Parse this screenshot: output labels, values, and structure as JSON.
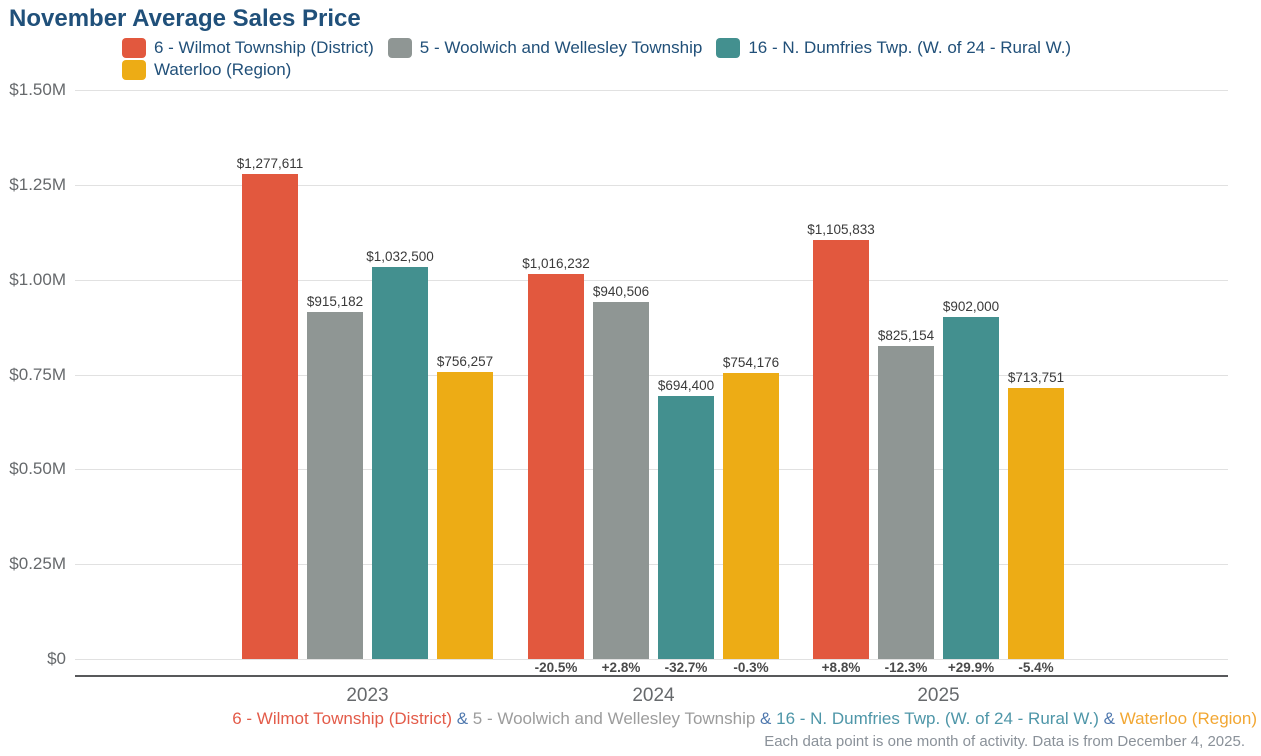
{
  "title": "November Average Sales Price",
  "chart_data": {
    "type": "bar",
    "title": "November Average Sales Price",
    "categories": [
      "2023",
      "2024",
      "2025"
    ],
    "series": [
      {
        "name": "6 - Wilmot Township (District)",
        "color": "#E2583E",
        "footer_color": "#E35B49",
        "values": [
          1277611,
          1016232,
          1105833
        ],
        "labels": [
          "$1,277,611",
          "$1,016,232",
          "$1,105,833"
        ],
        "pct_change": [
          null,
          "-20.5%",
          "+8.8%"
        ]
      },
      {
        "name": "5 - Woolwich and Wellesley Township",
        "color": "#8F9694",
        "footer_color": "#9C9C9C",
        "values": [
          915182,
          940506,
          825154
        ],
        "labels": [
          "$915,182",
          "$940,506",
          "$825,154"
        ],
        "pct_change": [
          null,
          "+2.8%",
          "-12.3%"
        ]
      },
      {
        "name": "16 - N. Dumfries Twp. (W. of 24 - Rural W.)",
        "color": "#43908F",
        "footer_color": "#4E96A8",
        "values": [
          1032500,
          694400,
          902000
        ],
        "labels": [
          "$1,032,500",
          "$694,400",
          "$902,000"
        ],
        "pct_change": [
          null,
          "-32.7%",
          "+29.9%"
        ]
      },
      {
        "name": "Waterloo (Region)",
        "color": "#EDAC15",
        "footer_color": "#F2A733",
        "values": [
          756257,
          754176,
          713751
        ],
        "labels": [
          "$756,257",
          "$754,176",
          "$713,751"
        ],
        "pct_change": [
          null,
          "-0.3%",
          "-5.4%"
        ]
      }
    ],
    "y_axis": {
      "max": 1500000,
      "ticks": [
        {
          "label": "$0",
          "value": 0
        },
        {
          "label": "$0.25M",
          "value": 250000
        },
        {
          "label": "$0.50M",
          "value": 500000
        },
        {
          "label": "$0.75M",
          "value": 750000
        },
        {
          "label": "$1.00M",
          "value": 1000000
        },
        {
          "label": "$1.25M",
          "value": 1250000
        },
        {
          "label": "$1.50M",
          "value": 1500000
        }
      ]
    },
    "legend_position": "top",
    "grid": true
  },
  "footer": {
    "separator": "&",
    "separator_color": "#4F78AE",
    "note": "Each data point is one month of activity. Data is from December 4, 2025."
  }
}
